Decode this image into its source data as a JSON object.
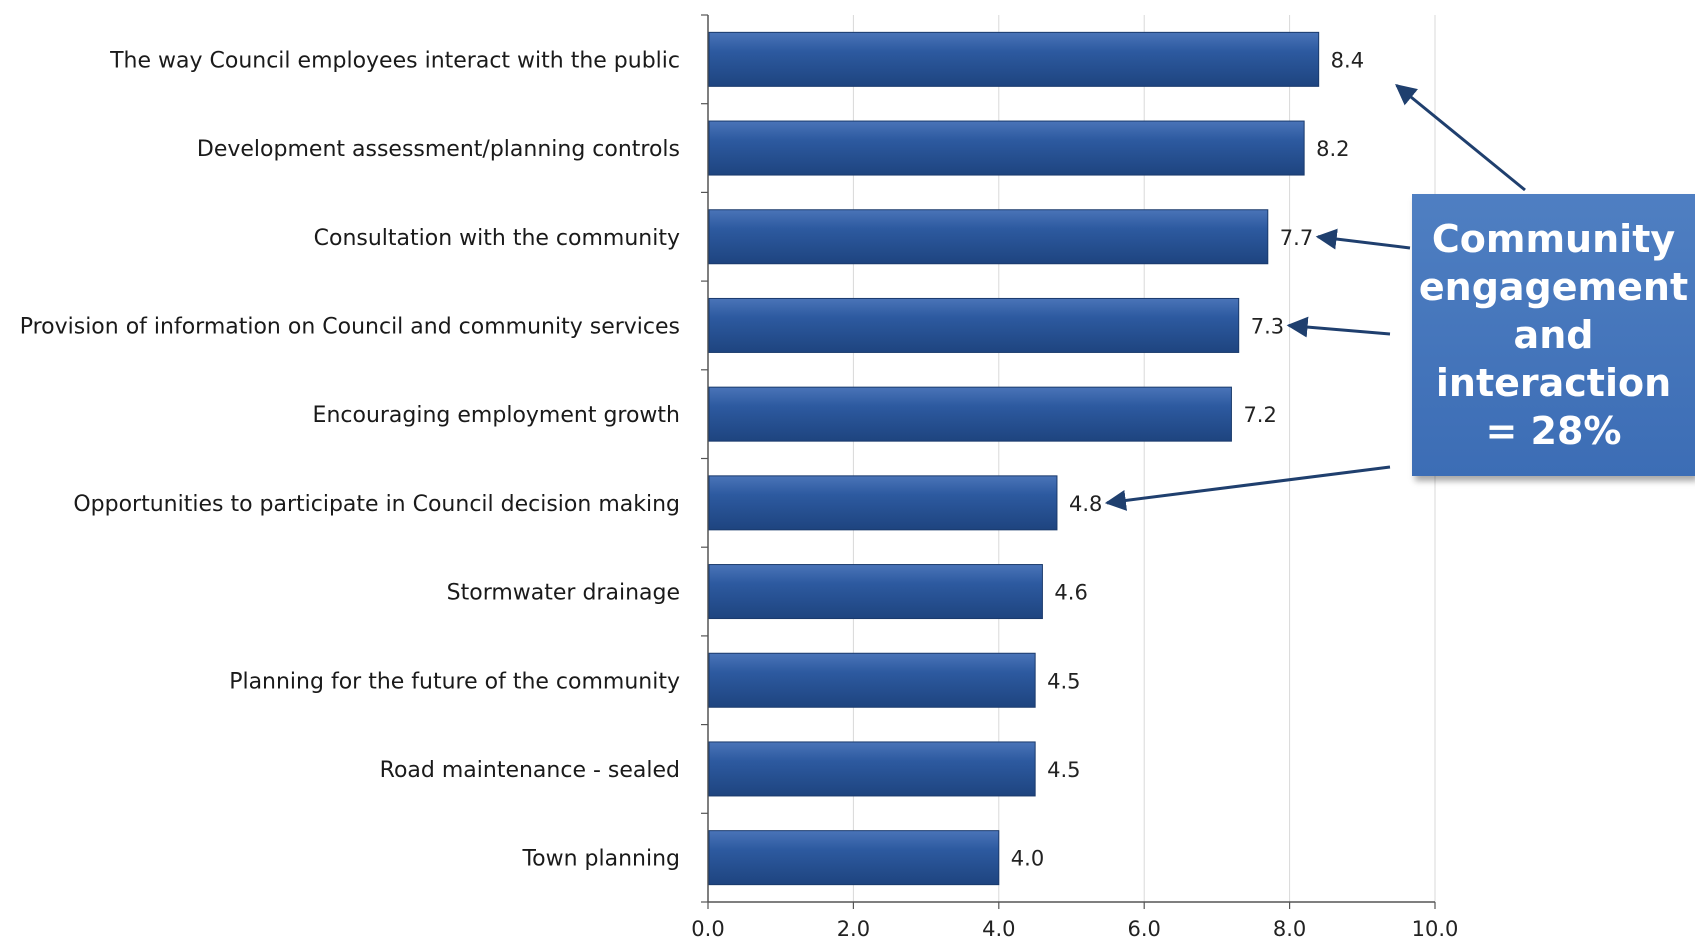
{
  "chart_data": {
    "type": "bar",
    "orientation": "horizontal",
    "categories": [
      "The way Council employees interact with the public",
      "Development assessment/planning controls",
      "Consultation with the community",
      "Provision of information on Council and community services",
      "Encouraging employment growth",
      "Opportunities to participate in Council decision making",
      "Stormwater drainage",
      "Planning for the future of the community",
      "Road maintenance - sealed",
      "Town planning"
    ],
    "values": [
      8.4,
      8.2,
      7.7,
      7.3,
      7.2,
      4.8,
      4.6,
      4.5,
      4.5,
      4.0
    ],
    "value_labels": [
      "8.4",
      "8.2",
      "7.7",
      "7.3",
      "7.2",
      "4.8",
      "4.6",
      "4.5",
      "4.5",
      "4.0"
    ],
    "xlim": [
      0,
      10
    ],
    "x_ticks": [
      "0.0",
      "2.0",
      "4.0",
      "6.0",
      "8.0",
      "10.0"
    ],
    "grid": "vertical",
    "bar_color": "#2b5597",
    "annotation": {
      "text": "Community\nengagement\nand\ninteraction\n= 28%",
      "color": "#4472c4",
      "points_to": [
        "The way Council employees interact with the public",
        "Consultation with the community",
        "Provision of information on Council and community services",
        "Opportunities to participate in Council decision making"
      ]
    }
  }
}
